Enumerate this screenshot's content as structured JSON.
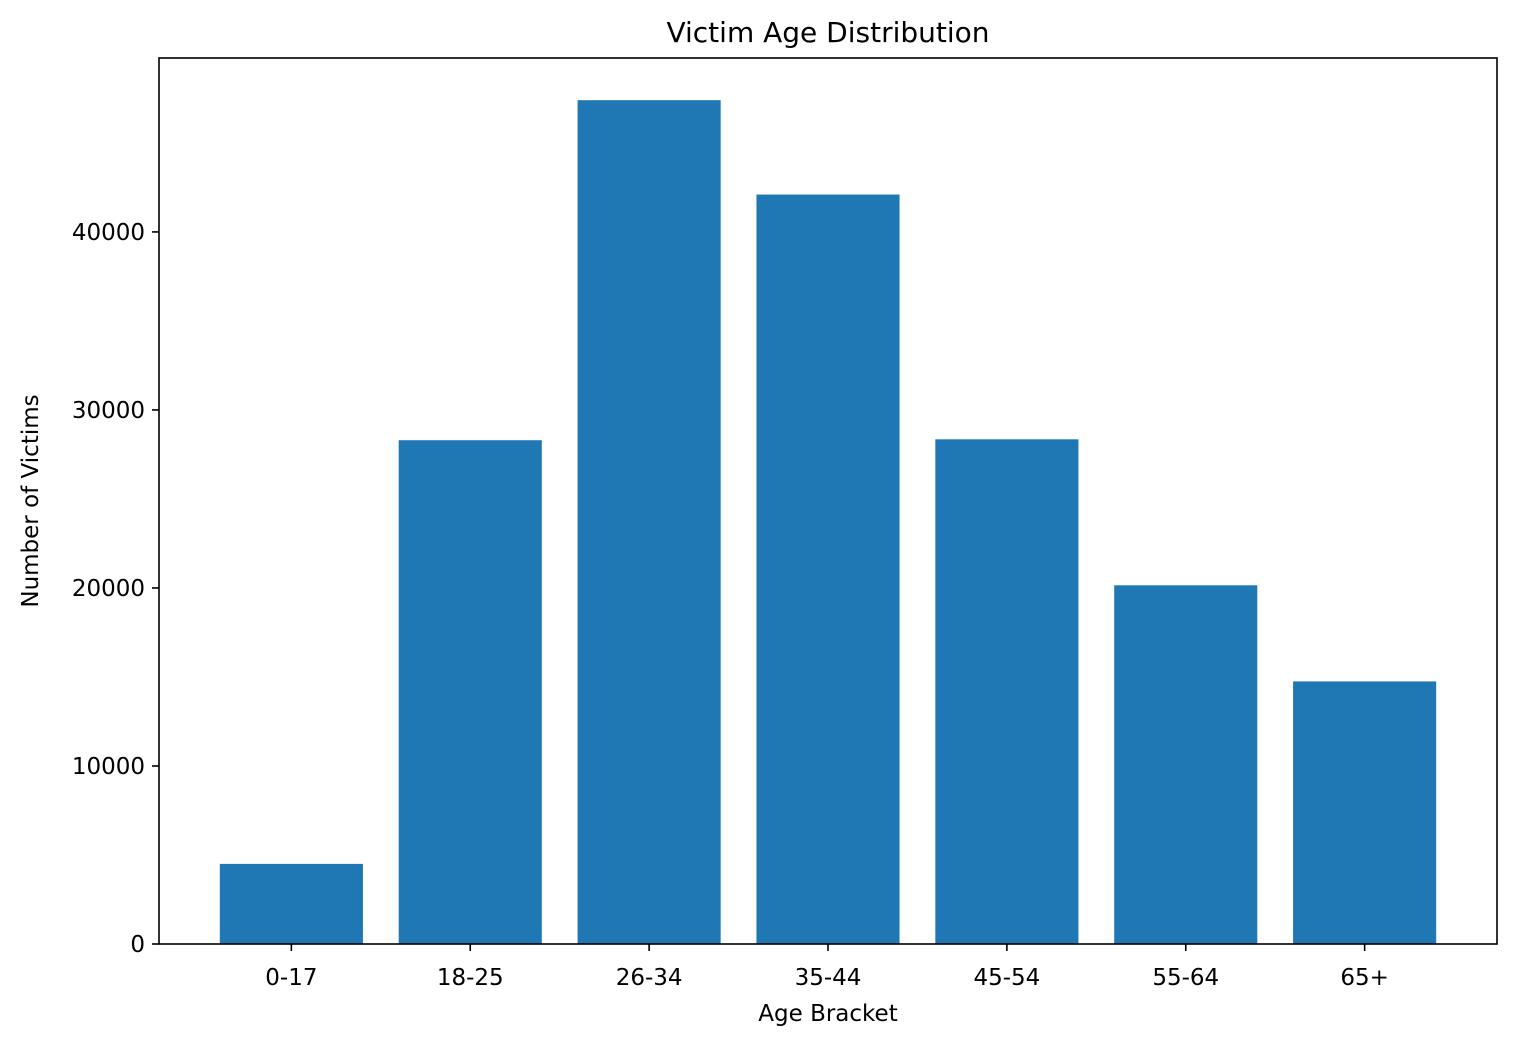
{
  "chart_data": {
    "type": "bar",
    "title": "Victim Age Distribution",
    "xlabel": "Age Bracket",
    "ylabel": "Number of Victims",
    "categories": [
      "0-17",
      "18-25",
      "26-34",
      "35-44",
      "45-54",
      "55-64",
      "65+"
    ],
    "values": [
      4500,
      28300,
      47400,
      42100,
      28350,
      20150,
      14750
    ],
    "yticks": [
      0,
      10000,
      20000,
      30000,
      40000
    ],
    "ylim": [
      0,
      49770
    ],
    "grid": false,
    "bar_color": "#1f77b4"
  }
}
